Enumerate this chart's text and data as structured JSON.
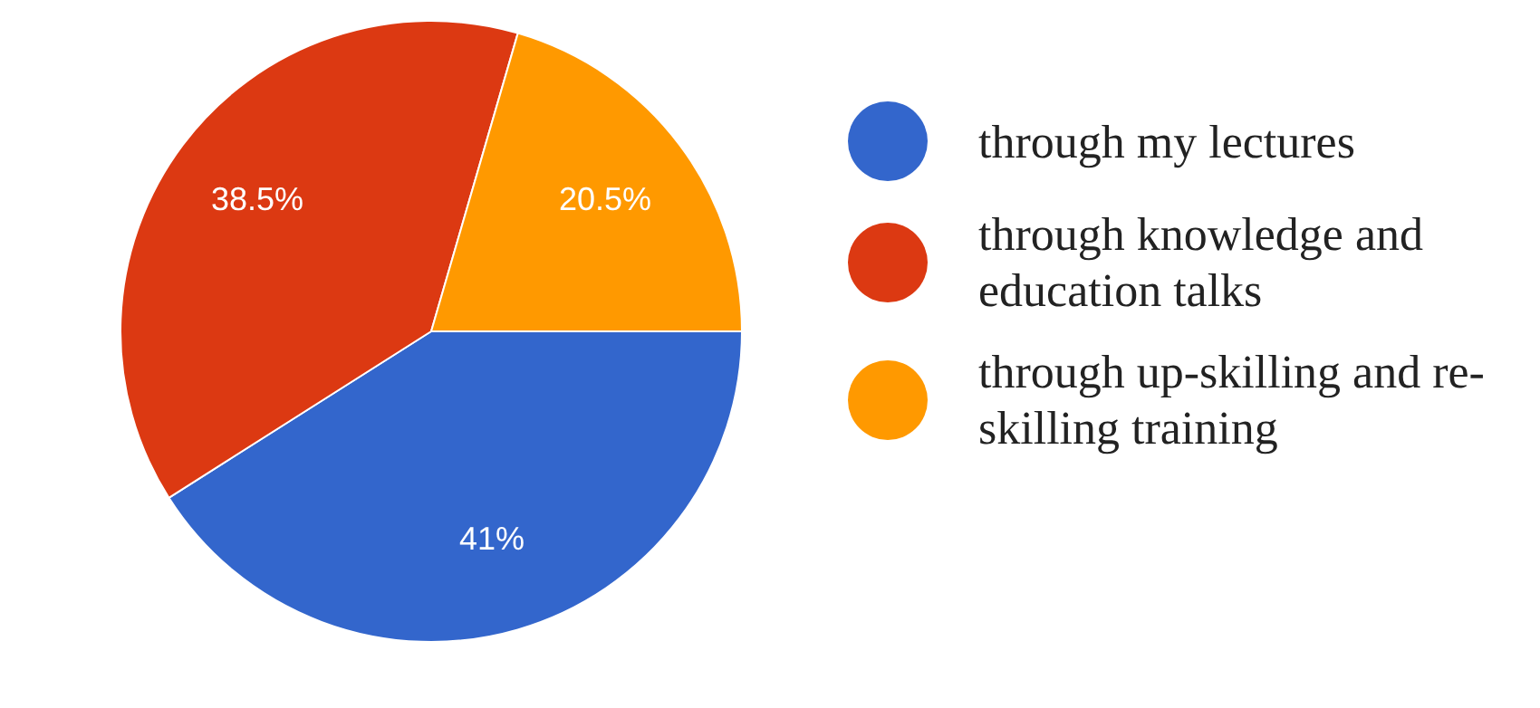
{
  "chart_data": {
    "type": "pie",
    "categories": [
      "through my lectures",
      "through knowledge and education talks",
      "through up-skilling and re-skilling training"
    ],
    "values": [
      41,
      38.5,
      20.5
    ],
    "colors": [
      "#3366cc",
      "#dc3912",
      "#ff9900"
    ],
    "value_labels": [
      "41%",
      "38.5%",
      "20.5%"
    ],
    "legend": "right"
  }
}
